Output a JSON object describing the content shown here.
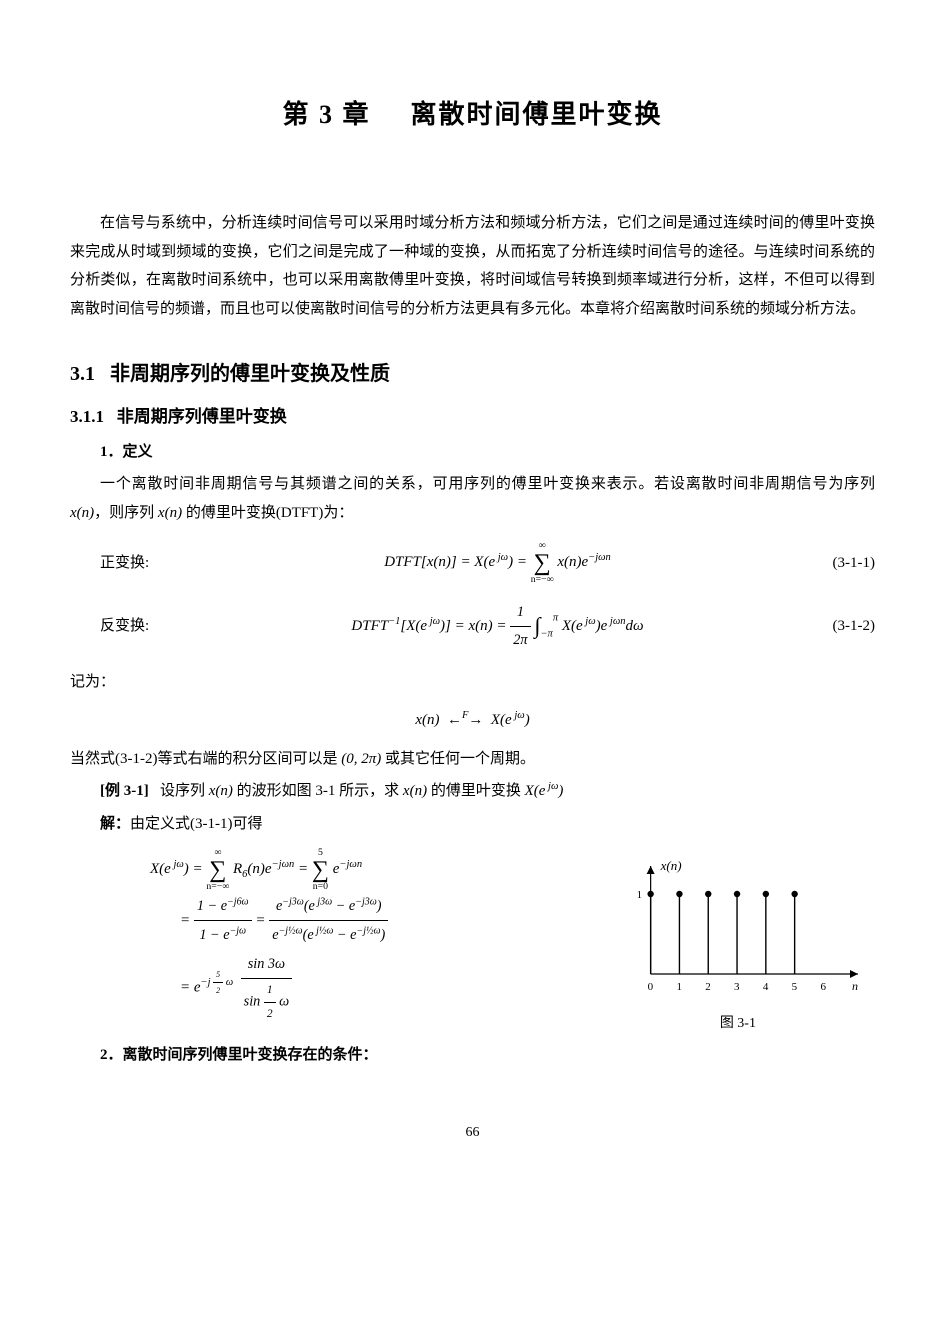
{
  "chapter": {
    "num": "第 3 章",
    "title": "离散时间傅里叶变换"
  },
  "intro": "在信号与系统中，分析连续时间信号可以采用时域分析方法和频域分析方法，它们之间是通过连续时间的傅里叶变换来完成从时域到频域的变换，它们之间是完成了一种域的变换，从而拓宽了分析连续时间信号的途径。与连续时间系统的分析类似，在离散时间系统中，也可以采用离散傅里叶变换，将时间域信号转换到频率域进行分析，这样，不但可以得到离散时间信号的频谱，而且也可以使离散时间信号的分析方法更具有多元化。本章将介绍离散时间系统的频域分析方法。",
  "sec31": {
    "num": "3.1",
    "title": "非周期序列的傅里叶变换及性质"
  },
  "sec311": {
    "num": "3.1.1",
    "title": "非周期序列傅里叶变换"
  },
  "def_heading": "1．定义",
  "def_text_a": "一个离散时间非周期信号与其频谱之间的关系，可用序列的傅里叶变换来表示。若设离散时间非周期信号为序列 ",
  "def_text_b": "，则序列 ",
  "def_text_c": " 的傅里叶变换(DTFT)为：",
  "xn": "x(n)",
  "fwd_label": "正变换:",
  "fwd_eq": "DTFT[x(n)] = X(e^{jω}) = Σ_{n=-∞}^{∞} x(n) e^{-jωn}",
  "fwd_num": "(3-1-1)",
  "inv_label": "反变换:",
  "inv_eq": "DTFT^{-1}[X(e^{jω})] = x(n) = (1/2π) ∫_{-π}^{π} X(e^{jω}) e^{jωn} dω",
  "inv_num": "(3-1-2)",
  "note_a": "记为：",
  "pair_eq": "x(n) ←—F—→ X(e^{jω})",
  "note_b_a": "当然式(3-1-2)等式右端的积分区间可以是 ",
  "note_b_interval": "(0, 2π)",
  "note_b_b": " 或其它任何一个周期。",
  "example_tag": "[例 3-1]",
  "example_a": "设序列 ",
  "example_b": " 的波形如图 3-1 所示，求 ",
  "example_c": " 的傅里叶变换 ",
  "Xejw": "X(e^{jω})",
  "sol_label": "解：",
  "sol_text": "由定义式(3-1-1)可得",
  "sol_line1": "X(e^{jω}) = Σ_{n=-∞}^{∞} R₆(n) e^{-jωn} = Σ_{n=0}^{5} e^{-jωn}",
  "sol_line2": "= (1 - e^{-j6ω}) / (1 - e^{-jω}) = e^{-j3ω}(e^{j3ω} - e^{-j3ω}) / ( e^{-j½ω}(e^{j½ω} - e^{-j½ω}) )",
  "sol_line3": "= e^{-j(5/2)ω} · sin3ω / sin(½ω)",
  "cond_heading": "2．离散时间序列傅里叶变换存在的条件：",
  "figure": {
    "caption": "图 3-1",
    "ylabel": "x(n)",
    "ytick": "1",
    "xticks": [
      "0",
      "1",
      "2",
      "3",
      "4",
      "5",
      "6"
    ],
    "xlabel": "n",
    "stem_x": [
      0,
      1,
      2,
      3,
      4,
      5
    ],
    "stem_y": [
      1,
      1,
      1,
      1,
      1,
      1
    ],
    "axis_color": "#000000",
    "stem_color": "#000000",
    "background": "#ffffff",
    "font_size_pt": 11,
    "x_range": [
      -0.3,
      7.2
    ],
    "y_range": [
      0,
      1.35
    ]
  },
  "page": "66"
}
